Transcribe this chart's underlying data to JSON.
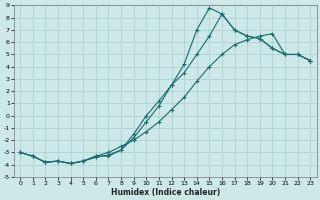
{
  "xlabel": "Humidex (Indice chaleur)",
  "bg_color": "#cce8e8",
  "line_color": "#1a6b6b",
  "grid_color": "#aacece",
  "xlim": [
    -0.5,
    23.5
  ],
  "ylim": [
    -5,
    9
  ],
  "xticks": [
    0,
    1,
    2,
    3,
    4,
    5,
    6,
    7,
    8,
    9,
    10,
    11,
    12,
    13,
    14,
    15,
    16,
    17,
    18,
    19,
    20,
    21,
    22,
    23
  ],
  "yticks": [
    -5,
    -4,
    -3,
    -2,
    -1,
    0,
    1,
    2,
    3,
    4,
    5,
    6,
    7,
    8,
    9
  ],
  "curve1_x": [
    0,
    1,
    2,
    3,
    4,
    5,
    6,
    7,
    8,
    9,
    10,
    11,
    12,
    13,
    14,
    15,
    16,
    17,
    18,
    19,
    20,
    21,
    22,
    23
  ],
  "curve1_y": [
    -3.0,
    -3.3,
    -3.8,
    -3.7,
    -3.9,
    -3.7,
    -3.3,
    -3.3,
    -2.8,
    -1.8,
    -0.5,
    0.8,
    2.5,
    4.2,
    7.0,
    8.8,
    8.3,
    7.0,
    6.5,
    6.3,
    5.5,
    5.0,
    5.0,
    4.5
  ],
  "curve2_x": [
    0,
    1,
    2,
    3,
    4,
    5,
    6,
    7,
    8,
    9,
    10,
    11,
    12,
    13,
    14,
    15,
    16,
    17,
    18,
    19,
    20,
    21,
    22,
    23
  ],
  "curve2_y": [
    -3.0,
    -3.3,
    -3.8,
    -3.7,
    -3.9,
    -3.7,
    -3.3,
    -3.0,
    -2.5,
    -2.0,
    -1.3,
    -0.5,
    0.5,
    1.5,
    2.8,
    4.0,
    5.0,
    5.8,
    6.2,
    6.5,
    6.7,
    5.0,
    5.0,
    4.5
  ],
  "curve3_x": [
    0,
    1,
    2,
    3,
    4,
    5,
    6,
    7,
    8,
    9,
    10,
    11,
    12,
    13,
    14,
    15,
    16,
    17,
    18,
    19,
    20,
    21,
    22,
    23
  ],
  "curve3_y": [
    -3.0,
    -3.3,
    -3.8,
    -3.7,
    -3.9,
    -3.7,
    -3.4,
    -3.2,
    -2.8,
    -1.5,
    0.0,
    1.2,
    2.5,
    3.5,
    5.0,
    6.5,
    8.3,
    7.0,
    6.5,
    6.3,
    5.5,
    5.0,
    5.0,
    4.5
  ]
}
